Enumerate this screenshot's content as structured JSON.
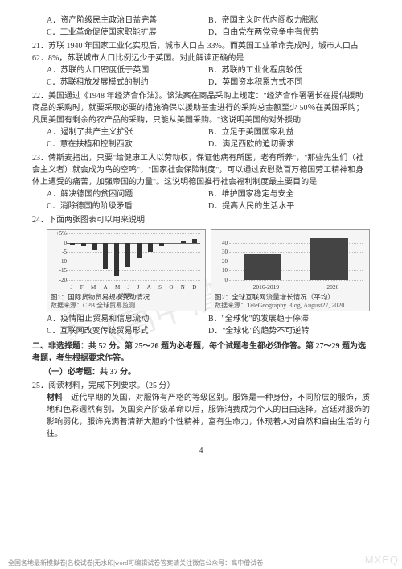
{
  "q20_opts": {
    "A": "A．资产阶级民主政治日益完善",
    "B": "B．帝国主义时代内阁权力膨胀",
    "C": "C．工业革命促使国家职能扩展",
    "D": "D．自由党在两党竞争中有优势"
  },
  "q21": {
    "num": "21．",
    "text": "苏联 1940 年国家工业化实现后，城市人口占 33%。而英国工业革命完成时，城市人口占 62．8%，苏联城市人口比例远少于英国。对此解读正确的是",
    "opts": {
      "A": "A．苏联的人口密度低于英国",
      "B": "B．苏联的工业化程度较低",
      "C": "C．苏联租放发展模式的制约",
      "D": "D．英国资本积累方式不同"
    }
  },
  "q22": {
    "num": "22．",
    "text": "美国通过《1948 年经济合作法》。该法案在商品采购上规定：\"经济合作署署长在提供援助商品的采购时，就要采取必要的措施确保以援助基金进行的采购总金额至少 50％在美国采购；凡属美国有剩余的农产品的采购，只能从美国采购。\"这说明美国的对外援助",
    "opts": {
      "A": "A．遏制了共产主义扩张",
      "B": "B．立足于美国国家利益",
      "C": "C．意在扶植和控制西欧",
      "D": "D．满足西欧的迫切需求"
    }
  },
  "q23": {
    "num": "23．",
    "text": "俾斯麦指出，只要\"给健康工人以劳动权，保证他病有所医，老有所养\"，\"那些先生们（社会主义者）就会成为鸟的空鸣\"，\"国家社会保险制度\"，可以通过安慰数百万德国劳工精神和身体上遭受的痛苦，加强帝国的力量\"。这说明德国推行社会福利制度最主要目的是",
    "opts": {
      "A": "A．解决德国的贫困问题",
      "B": "B．维护国家稳定与安全",
      "C": "C．消除德国的阶级矛盾",
      "D": "D．提高人民的生活水平"
    }
  },
  "q24": {
    "num": "24．",
    "text": "下面两张图表可以用来说明",
    "chart1": {
      "caption": "图1：国际货物贸易规模变动情况",
      "source": "数据来源：CPB 全球贸易监测",
      "yticks": [
        "+5%",
        "0",
        "-5",
        "-10",
        "-15",
        "-20"
      ],
      "ylim": [
        -20,
        5
      ],
      "months": [
        "J",
        "F",
        "M",
        "A",
        "M",
        "J",
        "J",
        "A",
        "S",
        "O",
        "N",
        "D"
      ],
      "year": "2020",
      "bars": [
        -1,
        -2,
        -4,
        -14,
        -18,
        -13,
        -8,
        -5,
        -2,
        0,
        1,
        2
      ],
      "bar_color": "#333333",
      "bg": "#f3f3f3",
      "grid_color": "#bbbbbb"
    },
    "chart2": {
      "title": "",
      "caption": "图2：全球互联网流量增长情况（平均）",
      "source": "数据来源：TeleGeography Blog, August27, 2020",
      "yticks": [
        "40",
        "30",
        "20",
        "10",
        "0"
      ],
      "ylim": [
        0,
        50
      ],
      "cats": [
        "2016-2019",
        "2020"
      ],
      "vals": [
        28,
        45
      ],
      "bar_color": "#444444",
      "bg": "#f3f3f3"
    },
    "opts": {
      "A": "A．疫情阻止贸易和信息流动",
      "B": "B．\"全球化\"的发展趋于停滞",
      "C": "C．互联网改变传统贸易形式",
      "D": "D．\"全球化\"的趋势不可逆转"
    }
  },
  "section2": "二、非选择题：共 52 分。第 25～26 题为必考题，每个试题考生都必须作答。第 27～29 题为选考题，考生根据要求作答。",
  "sub1": "（一）必考题：共 37 分。",
  "q25": {
    "num": "25．",
    "text": "阅读材料，完成下列要求。（25 分）",
    "mat_label": "材料",
    "mat": "近代早期的英国，对服饰有严格的等级区别。服饰是一种身份，不同阶层的服饰，质地和色彩迥然有别。英国资产阶级革命以后，服饰消费成为个人的自由选择。宫廷对服饰的影响弱化，服饰充满着清新大胆的个性精神，富有生命力，体现着人对自然和自由生活的向往。"
  },
  "page_num": "4",
  "wm_center": "《高中僧试卷》",
  "wm_side": "公众号：《高中僧试卷》",
  "wm_corner": "MXEQ",
  "footer": "全国各地最新模拟卷|名校试卷|无水印|word可编辑试卷答案请关注微信公众号：高中僧试卷"
}
